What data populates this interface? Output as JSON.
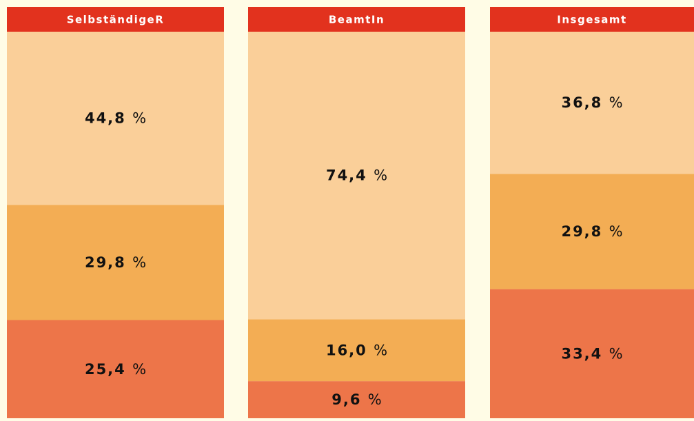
{
  "chart_data": {
    "type": "stacked-bar",
    "categories": [
      "SelbständigeR",
      "BeamtIn",
      "Insgesamt"
    ],
    "ylim": [
      0,
      100
    ],
    "header_color": "#e2321e",
    "series": [
      {
        "color": "#ed7549",
        "values": [
          25.4,
          9.6,
          33.4
        ],
        "value_labels": [
          "25,4 %",
          "9,6 %",
          "33,4 %"
        ]
      },
      {
        "color": "#f3ad54",
        "values": [
          29.8,
          16.0,
          29.8
        ],
        "value_labels": [
          "29,8 %",
          "16,0 %",
          "29,8 %"
        ]
      },
      {
        "color": "#facf99",
        "values": [
          44.8,
          74.4,
          36.8
        ],
        "value_labels": [
          "44,8 %",
          "74,4 %",
          "36,8 %"
        ]
      }
    ]
  }
}
